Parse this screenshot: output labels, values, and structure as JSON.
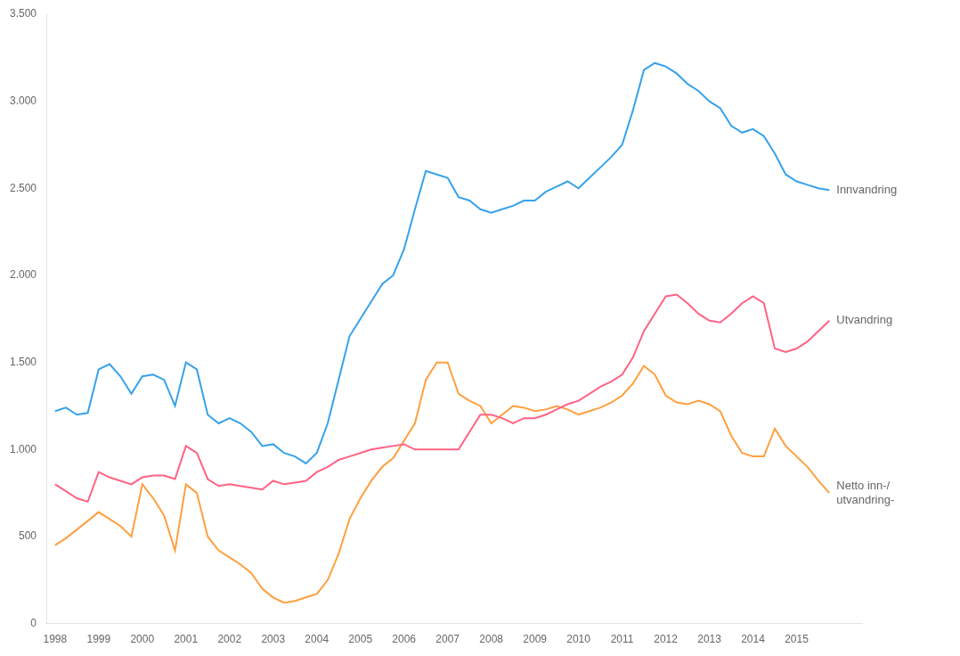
{
  "chart_data": {
    "type": "line",
    "x": [
      1998,
      1998.25,
      1998.5,
      1998.75,
      1999,
      1999.25,
      1999.5,
      1999.75,
      2000,
      2000.25,
      2000.5,
      2000.75,
      2001,
      2001.25,
      2001.5,
      2001.75,
      2002,
      2002.25,
      2002.5,
      2002.75,
      2003,
      2003.25,
      2003.5,
      2003.75,
      2004,
      2004.25,
      2004.5,
      2004.75,
      2005,
      2005.25,
      2005.5,
      2005.75,
      2006,
      2006.25,
      2006.5,
      2006.75,
      2007,
      2007.25,
      2007.5,
      2007.75,
      2008,
      2008.25,
      2008.5,
      2008.75,
      2009,
      2009.25,
      2009.5,
      2009.75,
      2010,
      2010.25,
      2010.5,
      2010.75,
      2011,
      2011.25,
      2011.5,
      2011.75,
      2012,
      2012.25,
      2012.5,
      2012.75,
      2013,
      2013.25,
      2013.5,
      2013.75,
      2014,
      2014.25,
      2014.5,
      2014.75,
      2015,
      2015.25,
      2015.5,
      2015.75
    ],
    "series": [
      {
        "name": "Innvandring",
        "values": [
          1220,
          1240,
          1200,
          1210,
          1460,
          1490,
          1420,
          1320,
          1420,
          1430,
          1400,
          1250,
          1500,
          1460,
          1200,
          1150,
          1180,
          1150,
          1100,
          1020,
          1030,
          980,
          960,
          920,
          980,
          1150,
          1400,
          1650,
          1750,
          1850,
          1950,
          2000,
          2150,
          2380,
          2600,
          2580,
          2560,
          2450,
          2430,
          2380,
          2360,
          2380,
          2400,
          2430,
          2430,
          2480,
          2510,
          2540,
          2500,
          2560,
          2620,
          2680,
          2750,
          2950,
          3180,
          3220,
          3200,
          3160,
          3100,
          3060,
          3000,
          2960,
          2860,
          2820,
          2840,
          2800,
          2700,
          2580,
          2540,
          2520,
          2500,
          2490
        ]
      },
      {
        "name": "Utvandring",
        "values": [
          800,
          760,
          720,
          700,
          870,
          840,
          820,
          800,
          840,
          850,
          850,
          830,
          1020,
          980,
          830,
          790,
          800,
          790,
          780,
          770,
          820,
          800,
          810,
          820,
          870,
          900,
          940,
          960,
          980,
          1000,
          1010,
          1020,
          1030,
          1000,
          1000,
          1000,
          1000,
          1000,
          1100,
          1200,
          1200,
          1180,
          1150,
          1180,
          1180,
          1200,
          1230,
          1260,
          1280,
          1320,
          1360,
          1390,
          1430,
          1530,
          1680,
          1780,
          1880,
          1890,
          1840,
          1780,
          1740,
          1730,
          1780,
          1840,
          1880,
          1840,
          1580,
          1560,
          1580,
          1620,
          1680,
          1740
        ]
      },
      {
        "name": "Netto inn-/\nutvandring-",
        "values": [
          450,
          490,
          540,
          590,
          640,
          600,
          560,
          500,
          800,
          720,
          620,
          420,
          800,
          750,
          500,
          420,
          380,
          340,
          290,
          200,
          150,
          120,
          130,
          150,
          170,
          250,
          400,
          600,
          720,
          820,
          900,
          950,
          1050,
          1150,
          1400,
          1500,
          1500,
          1320,
          1280,
          1250,
          1150,
          1200,
          1250,
          1240,
          1220,
          1230,
          1250,
          1230,
          1200,
          1220,
          1240,
          1270,
          1310,
          1380,
          1480,
          1430,
          1310,
          1270,
          1260,
          1280,
          1260,
          1220,
          1080,
          980,
          960,
          960,
          1120,
          1020,
          960,
          900,
          820,
          750
        ]
      }
    ],
    "xlim": [
      1997.8,
      2016.5
    ],
    "xticks": [
      1998,
      1999,
      2000,
      2001,
      2002,
      2003,
      2004,
      2005,
      2006,
      2007,
      2008,
      2009,
      2010,
      2011,
      2012,
      2013,
      2014,
      2015
    ],
    "ylim": [
      0,
      3500
    ],
    "yticks": [
      0,
      500,
      {
        "value": 1000,
        "label": "1.000"
      },
      {
        "value": 1500,
        "label": "1.500"
      },
      {
        "value": 2000,
        "label": "2.000"
      },
      {
        "value": 2500,
        "label": "2.500"
      },
      {
        "value": 3000,
        "label": "3.000"
      },
      {
        "value": 3500,
        "label": "3.500"
      }
    ],
    "grid": false
  }
}
